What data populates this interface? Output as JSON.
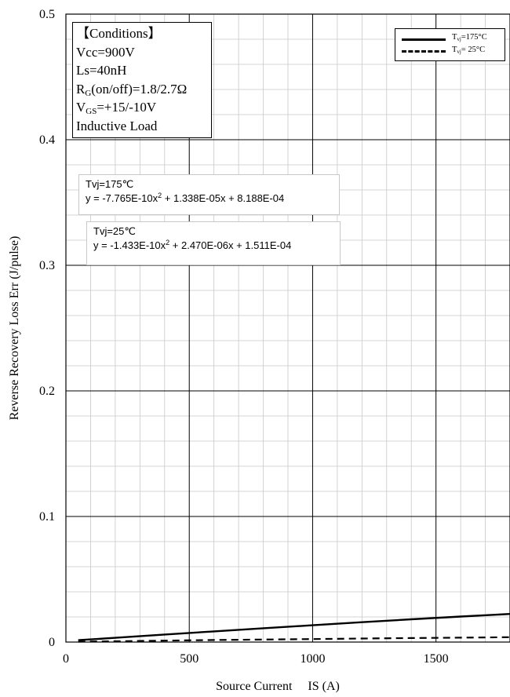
{
  "chart_data": {
    "type": "line",
    "xlabel": "Source Current     IS (A)",
    "ylabel": "Reverse Recovery Loss   Err (J/pulse)",
    "xlim": [
      0,
      1800
    ],
    "ylim": [
      0,
      0.5
    ],
    "x_ticks": [
      "0",
      "500",
      "1000",
      "1500"
    ],
    "y_ticks": [
      "0",
      "0.1",
      "0.2",
      "0.3",
      "0.4",
      "0.5"
    ],
    "grid": "major and minor",
    "legend_position": "top-right",
    "series": [
      {
        "name": "Tvj=175°C",
        "style": "solid",
        "x": [
          50,
          200,
          400,
          600,
          800,
          1000,
          1200,
          1400,
          1600,
          1800
        ],
        "y": [
          0.0015,
          0.0034,
          0.006,
          0.0085,
          0.011,
          0.0134,
          0.0158,
          0.0181,
          0.0203,
          0.0224
        ]
      },
      {
        "name": "Tvj=25°C",
        "style": "dashed",
        "x": [
          50,
          200,
          400,
          600,
          800,
          1000,
          1200,
          1400,
          1600,
          1800
        ],
        "y": [
          0.0003,
          0.0006,
          0.0011,
          0.0016,
          0.002,
          0.0024,
          0.0028,
          0.0032,
          0.0035,
          0.0039
        ]
      }
    ],
    "annotations": {
      "conditions": {
        "title": "【Conditions】",
        "vcc": "Vcc=900V",
        "ls": "Ls=40nH",
        "rg_main": "R",
        "rg_sub": "G",
        "rg_rest": "(on/off)=1.8/2.7Ω",
        "vgs_main": "V",
        "vgs_sub": "GS",
        "vgs_rest": "=+15/-10V",
        "load": "Inductive Load"
      },
      "fit_175": {
        "label": "Tvj=175℃",
        "eq_a": "y = -7.765E-10x",
        "eq_sup": "2",
        "eq_b": " + 1.338E-05x + 8.188E-04"
      },
      "fit_25": {
        "label": "Tvj=25℃",
        "eq_a": "y = -1.433E-10x",
        "eq_sup": "2",
        "eq_b": " + 2.470E-06x + 1.511E-04"
      }
    },
    "legend": {
      "l1_main": "T",
      "l1_sub": "vj",
      "l1_rest": "=175°C",
      "l2_main": "T",
      "l2_sub": "vj",
      "l2_rest": "= 25°C"
    }
  }
}
